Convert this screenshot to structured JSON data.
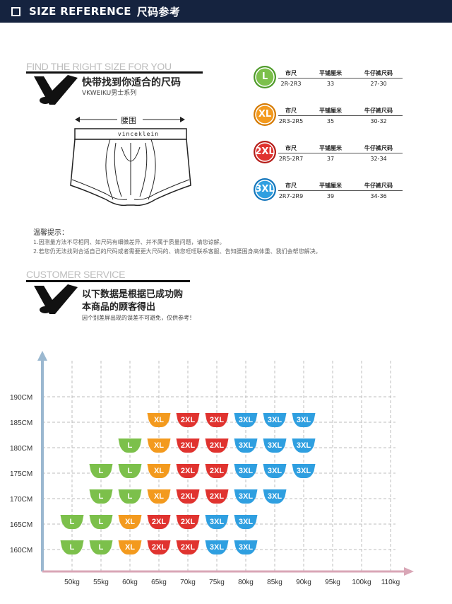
{
  "header": {
    "title_en": "SIZE REFERENCE",
    "title_cn": "尺码参考"
  },
  "fit_section": {
    "heading": "FIND THE RIGHT SIZE FOR YOU",
    "title": "快带找到你适合的尺码",
    "subtitle": "VKWEIKU男士系列",
    "waist_label": "腰围",
    "brand_text": "vinceklein"
  },
  "size_table": {
    "col_headers": [
      "市尺",
      "平铺厘米",
      "牛仔裤尺码"
    ],
    "rows": [
      {
        "size": "L",
        "color": "#7cc04b",
        "ring": "#4f9b2a",
        "shi_chi": "2R-2R3",
        "flat_cm": "33",
        "jeans": "27-30"
      },
      {
        "size": "XL",
        "color": "#f39a1e",
        "ring": "#d57a00",
        "shi_chi": "2R3-2R5",
        "flat_cm": "35",
        "jeans": "30-32"
      },
      {
        "size": "2XL",
        "color": "#e0332f",
        "ring": "#b51e1a",
        "shi_chi": "2R5-2R7",
        "flat_cm": "37",
        "jeans": "32-34"
      },
      {
        "size": "3XL",
        "color": "#2f9fe0",
        "ring": "#1677bc",
        "shi_chi": "2R7-2R9",
        "flat_cm": "39",
        "jeans": "34-36"
      }
    ]
  },
  "tips": {
    "heading": "温馨提示：",
    "line1": "1.因测量方法不尽相同、如尺码有细微差异、并不属于质量问题，请您谅解。",
    "line2": "2.若您仍无法找到合适自己的尺码或者需要更大尺码的、请您旺旺联系客服、告知腰围身高体重、我们会帮您解决。"
  },
  "service_section": {
    "heading": "CUSTOMER SERVICE",
    "line1": "以下数据是根据已成功购",
    "line2": "本商品的顾客得出",
    "note": "因个别差屏出现的误差不可避免，仅供参考！"
  },
  "colors": {
    "header_bg": "#15233f",
    "L": "#7cc04b",
    "XL": "#f39a1e",
    "2XL": "#e0332f",
    "3XL": "#2f9fe0",
    "axis": "#9bb8d0"
  },
  "chart_data": {
    "type": "table",
    "x_labels": [
      "50kg",
      "55kg",
      "60kg",
      "65kg",
      "70kg",
      "75kg",
      "80kg",
      "85kg",
      "90kg",
      "95kg",
      "100kg",
      "110kg"
    ],
    "y_labels": [
      "160CM",
      "165CM",
      "170CM",
      "175CM",
      "180CM",
      "185CM",
      "190CM"
    ],
    "grid": true,
    "rows": [
      {
        "height": "185CM",
        "cells": [
          "",
          "",
          "",
          "XL",
          "2XL",
          "2XL",
          "3XL",
          "3XL",
          "3XL",
          "",
          "",
          ""
        ]
      },
      {
        "height": "180CM",
        "cells": [
          "",
          "",
          "L",
          "XL",
          "2XL",
          "2XL",
          "3XL",
          "3XL",
          "3XL",
          "",
          "",
          ""
        ]
      },
      {
        "height": "175CM",
        "cells": [
          "",
          "L",
          "L",
          "XL",
          "2XL",
          "2XL",
          "3XL",
          "3XL",
          "3XL",
          "",
          "",
          ""
        ]
      },
      {
        "height": "170CM",
        "cells": [
          "",
          "L",
          "L",
          "XL",
          "2XL",
          "2XL",
          "3XL",
          "3XL",
          "",
          "",
          "",
          ""
        ]
      },
      {
        "height": "165CM",
        "cells": [
          "L",
          "L",
          "XL",
          "2XL",
          "2XL",
          "3XL",
          "3XL",
          "",
          "",
          "",
          "",
          ""
        ]
      },
      {
        "height": "160CM",
        "cells": [
          "L",
          "L",
          "XL",
          "2XL",
          "2XL",
          "3XL",
          "3XL",
          "",
          "",
          "",
          "",
          ""
        ]
      }
    ]
  }
}
